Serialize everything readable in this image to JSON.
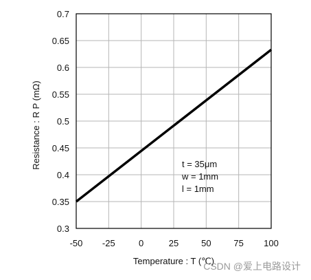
{
  "chart_data": {
    "type": "line",
    "xlabel": "Temperature : T (℃)",
    "ylabel": "Resistance : R P (mΩ)",
    "xlim": [
      -50,
      100
    ],
    "ylim": [
      0.3,
      0.7
    ],
    "xticks": [
      -50,
      -25,
      0,
      25,
      50,
      75,
      100
    ],
    "yticks": [
      0.3,
      0.35,
      0.4,
      0.45,
      0.5,
      0.55,
      0.6,
      0.65,
      0.7
    ],
    "xtick_labels": [
      "-50",
      "-25",
      "0",
      "25",
      "50",
      "75",
      "100"
    ],
    "ytick_labels": [
      "0.3",
      "0.35",
      "0.4",
      "0.45",
      "0.5",
      "0.55",
      "0.6",
      "0.65",
      "0.7"
    ],
    "grid": true,
    "series": [
      {
        "x": [
          -50,
          100
        ],
        "y": [
          0.35,
          0.633
        ],
        "color": "#000000"
      }
    ],
    "annotations": [
      "t = 35μm",
      "w = 1mm",
      "l = 1mm"
    ]
  },
  "watermark": "CSDN @爱上电路设计"
}
